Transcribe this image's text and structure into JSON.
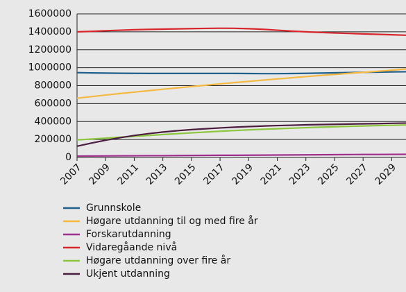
{
  "chart_data": {
    "type": "line",
    "x": [
      2007,
      2008,
      2009,
      2010,
      2011,
      2012,
      2013,
      2014,
      2015,
      2016,
      2017,
      2018,
      2019,
      2020,
      2021,
      2022,
      2023,
      2024,
      2025,
      2026,
      2027,
      2028,
      2029,
      2030
    ],
    "xlim": [
      2007,
      2030
    ],
    "xticks": [
      2007,
      2009,
      2011,
      2013,
      2015,
      2017,
      2019,
      2021,
      2023,
      2025,
      2027,
      2029
    ],
    "ylim": [
      0,
      1600000
    ],
    "yticks": [
      0,
      200000,
      400000,
      600000,
      800000,
      1000000,
      1200000,
      1400000,
      1600000
    ],
    "grid": true,
    "legend": "bottom",
    "series": [
      {
        "name": "Grunnskole",
        "color": "#1f5f8b",
        "values": [
          945000,
          942000,
          940000,
          938000,
          937000,
          936000,
          936000,
          936000,
          936000,
          936000,
          936000,
          936000,
          935000,
          934000,
          934000,
          935000,
          937000,
          940000,
          943000,
          946000,
          949000,
          951000,
          953000,
          955000
        ]
      },
      {
        "name": "Høgare utdanning til og med fire år",
        "color": "#f5b841",
        "values": [
          660000,
          678000,
          695000,
          712000,
          728000,
          744000,
          760000,
          775000,
          790000,
          805000,
          820000,
          834000,
          848000,
          862000,
          875000,
          888000,
          901000,
          913000,
          925000,
          937000,
          948000,
          960000,
          972000,
          985000
        ]
      },
      {
        "name": "Forskarutdanning",
        "color": "#a0308f",
        "values": [
          15000,
          16000,
          17000,
          18000,
          19000,
          20000,
          20000,
          21000,
          22000,
          23000,
          24000,
          24000,
          25000,
          26000,
          27000,
          28000,
          29000,
          30000,
          31000,
          32000,
          33000,
          33000,
          34000,
          35000
        ]
      },
      {
        "name": "Vidaregåande nivå",
        "color": "#d7262b",
        "values": [
          1400000,
          1405000,
          1412000,
          1418000,
          1423000,
          1427000,
          1430000,
          1433000,
          1436000,
          1438000,
          1440000,
          1439000,
          1435000,
          1428000,
          1418000,
          1408000,
          1400000,
          1393000,
          1387000,
          1382000,
          1377000,
          1372000,
          1367000,
          1362000
        ]
      },
      {
        "name": "Høgare utdanning over fire år",
        "color": "#8cc63f",
        "values": [
          195000,
          205000,
          215000,
          225000,
          235000,
          245000,
          255000,
          265000,
          274000,
          283000,
          292000,
          300000,
          307000,
          314000,
          320000,
          326000,
          332000,
          337000,
          342000,
          347000,
          351000,
          355000,
          358000,
          362000
        ]
      },
      {
        "name": "Ukjent utdanning",
        "color": "#4b1d3e",
        "values": [
          125000,
          160000,
          192000,
          220000,
          245000,
          265000,
          283000,
          298000,
          310000,
          320000,
          329000,
          337000,
          344000,
          350000,
          355000,
          359000,
          363000,
          366000,
          369000,
          372000,
          375000,
          377000,
          380000,
          383000
        ]
      }
    ]
  }
}
